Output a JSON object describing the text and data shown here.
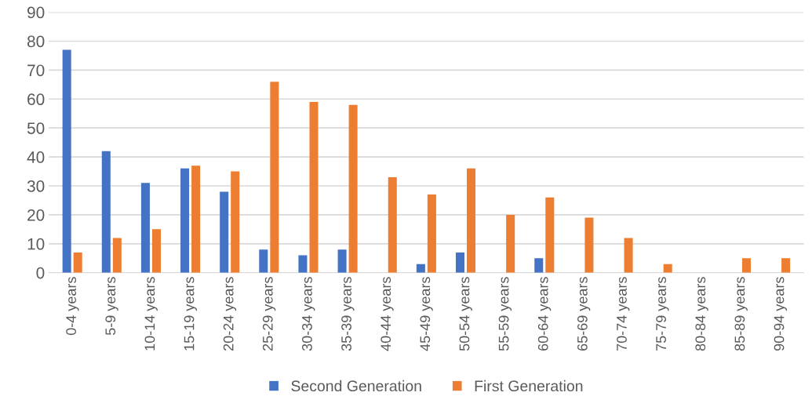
{
  "chart_data": {
    "type": "bar",
    "categories": [
      "0-4 years",
      "5-9 years",
      "10-14 years",
      "15-19 years",
      "20-24 years",
      "25-29 years",
      "30-34 years",
      "35-39 years",
      "40-44 years",
      "45-49 years",
      "50-54 years",
      "55-59 years",
      "60-64 years",
      "65-69 years",
      "70-74 years",
      "75-79 years",
      "80-84 years",
      "85-89 years",
      "90-94 years"
    ],
    "series": [
      {
        "name": "Second Generation",
        "color": "#4472c4",
        "values": [
          77,
          42,
          31,
          36,
          28,
          8,
          6,
          8,
          0,
          3,
          7,
          0,
          5,
          0,
          0,
          0,
          0,
          0,
          0
        ]
      },
      {
        "name": "First Generation",
        "color": "#ed7d31",
        "values": [
          7,
          12,
          15,
          37,
          35,
          66,
          59,
          58,
          33,
          27,
          36,
          20,
          26,
          19,
          12,
          3,
          0,
          5,
          5
        ]
      }
    ],
    "ylim": [
      0,
      90
    ],
    "yticks": [
      0,
      10,
      20,
      30,
      40,
      50,
      60,
      70,
      80,
      90
    ],
    "grid": "y",
    "legend": "bottom"
  }
}
